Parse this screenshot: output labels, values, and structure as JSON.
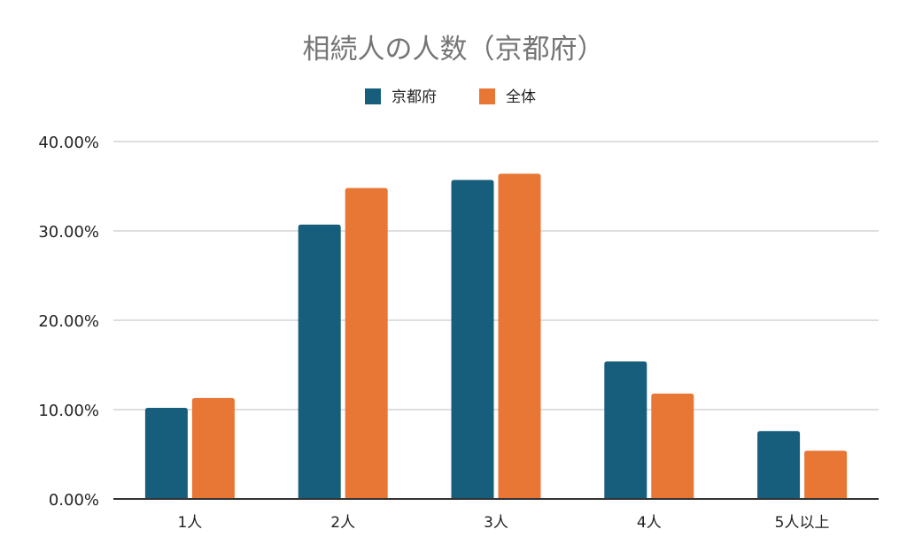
{
  "chart_data": {
    "type": "bar",
    "title": "相続人の人数（京都府）",
    "categories": [
      "1人",
      "2人",
      "3人",
      "4人",
      "5人以上"
    ],
    "series": [
      {
        "name": "京都府",
        "color": "#175E7D",
        "values": [
          10.2,
          30.7,
          35.7,
          15.4,
          7.6
        ]
      },
      {
        "name": "全体",
        "color": "#E87634",
        "values": [
          11.3,
          34.8,
          36.4,
          11.8,
          5.4
        ]
      }
    ],
    "ylim": [
      0,
      40
    ],
    "yticks": [
      "0.00%",
      "10.00%",
      "20.00%",
      "30.00%",
      "40.00%"
    ],
    "xlabel": "",
    "ylabel": "",
    "grid": true,
    "legend_position": "top-center",
    "gridline_color": "#D3D3D3",
    "axis_color": "#333333"
  }
}
